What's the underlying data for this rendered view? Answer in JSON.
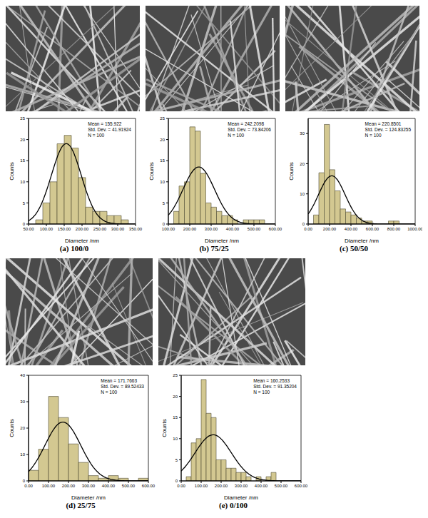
{
  "chart_data": [
    {
      "type": "histogram",
      "title": "(a) 100/0",
      "x_label": "Diameter /nm",
      "y_label": "Counts",
      "annotations": [
        "Mean = 155.922",
        "Std. Dev. = 41.91924",
        "N = 100"
      ],
      "mean": 155.922,
      "std_dev": 41.91924,
      "n": 100,
      "bins": [
        70,
        90,
        110,
        130,
        150,
        170,
        190,
        210,
        230,
        250,
        270,
        290,
        310,
        330
      ],
      "counts": [
        1,
        5,
        10,
        19,
        21,
        18,
        11,
        4,
        3,
        3,
        2,
        2,
        1
      ],
      "color": "#d3c891",
      "xlim": [
        50,
        350
      ],
      "xticks": [
        {
          "value": 50,
          "label": "50.00"
        },
        {
          "value": 100,
          "label": "100.00"
        },
        {
          "value": 150,
          "label": "150.00"
        },
        {
          "value": 200,
          "label": "200.00"
        },
        {
          "value": 250,
          "label": "250.00"
        },
        {
          "value": 300,
          "label": "300.00"
        },
        {
          "value": 350,
          "label": "350.00"
        }
      ],
      "ylim": [
        0,
        25
      ],
      "yticks": [
        0,
        5,
        10,
        15,
        20,
        25
      ]
    },
    {
      "type": "histogram",
      "title": "(b) 75/25",
      "x_label": "Diameter /nm",
      "y_label": "Counts",
      "annotations": [
        "Mean = 242.2098",
        "Std. Dev. = 73.84206",
        "N = 100"
      ],
      "mean": 242.2098,
      "std_dev": 73.84206,
      "n": 100,
      "bins": [
        125,
        150,
        175,
        200,
        225,
        250,
        275,
        300,
        325,
        350,
        375,
        400,
        425,
        450,
        475,
        500,
        525,
        550
      ],
      "counts": [
        3,
        9,
        10,
        23,
        22,
        12,
        5,
        4,
        3,
        2,
        2,
        1,
        0,
        1,
        1,
        1,
        1
      ],
      "color": "#d3c891",
      "xlim": [
        100,
        600
      ],
      "xticks": [
        {
          "value": 100,
          "label": "100.00"
        },
        {
          "value": 200,
          "label": "200.00"
        },
        {
          "value": 300,
          "label": "300.00"
        },
        {
          "value": 400,
          "label": "400.00"
        },
        {
          "value": 500,
          "label": "500.00"
        },
        {
          "value": 600,
          "label": "600.00"
        }
      ],
      "ylim": [
        0,
        25
      ],
      "yticks": [
        0,
        5,
        10,
        15,
        20,
        25
      ]
    },
    {
      "type": "histogram",
      "title": "(c) 50/50",
      "x_label": "Diameter /nm",
      "y_label": "Counts",
      "annotations": [
        "Mean = 220.8501",
        "Std. Dev. = 124.83255",
        "N = 100"
      ],
      "mean": 220.8501,
      "std_dev": 124.83255,
      "n": 100,
      "bins": [
        50,
        100,
        150,
        200,
        250,
        300,
        350,
        400,
        450,
        500,
        550,
        600,
        650,
        700,
        750,
        800,
        850
      ],
      "counts": [
        3,
        17,
        33,
        18,
        11,
        5,
        4,
        3,
        2,
        1,
        1,
        0,
        0,
        0,
        1,
        1
      ],
      "color": "#d3c891",
      "xlim": [
        0,
        1000
      ],
      "xticks": [
        {
          "value": 0,
          "label": "0.00"
        },
        {
          "value": 200,
          "label": "200.00"
        },
        {
          "value": 400,
          "label": "400.00"
        },
        {
          "value": 600,
          "label": "600.00"
        },
        {
          "value": 800,
          "label": "800.00"
        },
        {
          "value": 1000,
          "label": "1000.00"
        }
      ],
      "ylim": [
        0,
        35
      ],
      "yticks": [
        0,
        10,
        20,
        30
      ]
    },
    {
      "type": "histogram",
      "title": "(d) 25/75",
      "x_label": "Diameter /nm",
      "y_label": "Counts",
      "annotations": [
        "Mean = 171.7663",
        "Std. Dev. = 89.52433",
        "N = 100"
      ],
      "mean": 171.7663,
      "std_dev": 89.52433,
      "n": 100,
      "bins": [
        0,
        50,
        100,
        150,
        200,
        250,
        300,
        350,
        400,
        450,
        500,
        550,
        600
      ],
      "counts": [
        4,
        12,
        32,
        24,
        14,
        7,
        2,
        1,
        2,
        1,
        0,
        1
      ],
      "color": "#d3c891",
      "xlim": [
        0,
        600
      ],
      "xticks": [
        {
          "value": 0,
          "label": "0.00"
        },
        {
          "value": 100,
          "label": "100.00"
        },
        {
          "value": 200,
          "label": "200.00"
        },
        {
          "value": 300,
          "label": "300.00"
        },
        {
          "value": 400,
          "label": "400.00"
        },
        {
          "value": 500,
          "label": "500.00"
        },
        {
          "value": 600,
          "label": "600.00"
        }
      ],
      "ylim": [
        0,
        40
      ],
      "yticks": [
        0,
        10,
        20,
        30,
        40
      ]
    },
    {
      "type": "histogram",
      "title": "(e) 0/100",
      "x_label": "Diameter /nm",
      "y_label": "Counts",
      "annotations": [
        "Mean = 160.2533",
        "Std. Dev. = 91.35204",
        "N = 100"
      ],
      "mean": 160.2533,
      "std_dev": 91.35204,
      "n": 100,
      "bins": [
        25,
        50,
        75,
        100,
        125,
        150,
        175,
        200,
        225,
        250,
        275,
        300,
        325,
        350,
        375,
        400,
        425,
        450,
        475
      ],
      "counts": [
        1,
        9,
        10,
        24,
        16,
        15,
        5,
        5,
        3,
        3,
        2,
        2,
        1,
        0,
        1,
        0,
        1,
        2
      ],
      "color": "#d3c891",
      "xlim": [
        0,
        600
      ],
      "xticks": [
        {
          "value": 0,
          "label": "0.00"
        },
        {
          "value": 100,
          "label": "100.00"
        },
        {
          "value": 200,
          "label": "200.00"
        },
        {
          "value": 300,
          "label": "300.00"
        },
        {
          "value": 400,
          "label": "400.00"
        },
        {
          "value": 500,
          "label": "500.00"
        },
        {
          "value": 600,
          "label": "600.00"
        }
      ],
      "ylim": [
        0,
        25
      ],
      "yticks": [
        0,
        5,
        10,
        15,
        20,
        25
      ]
    }
  ]
}
